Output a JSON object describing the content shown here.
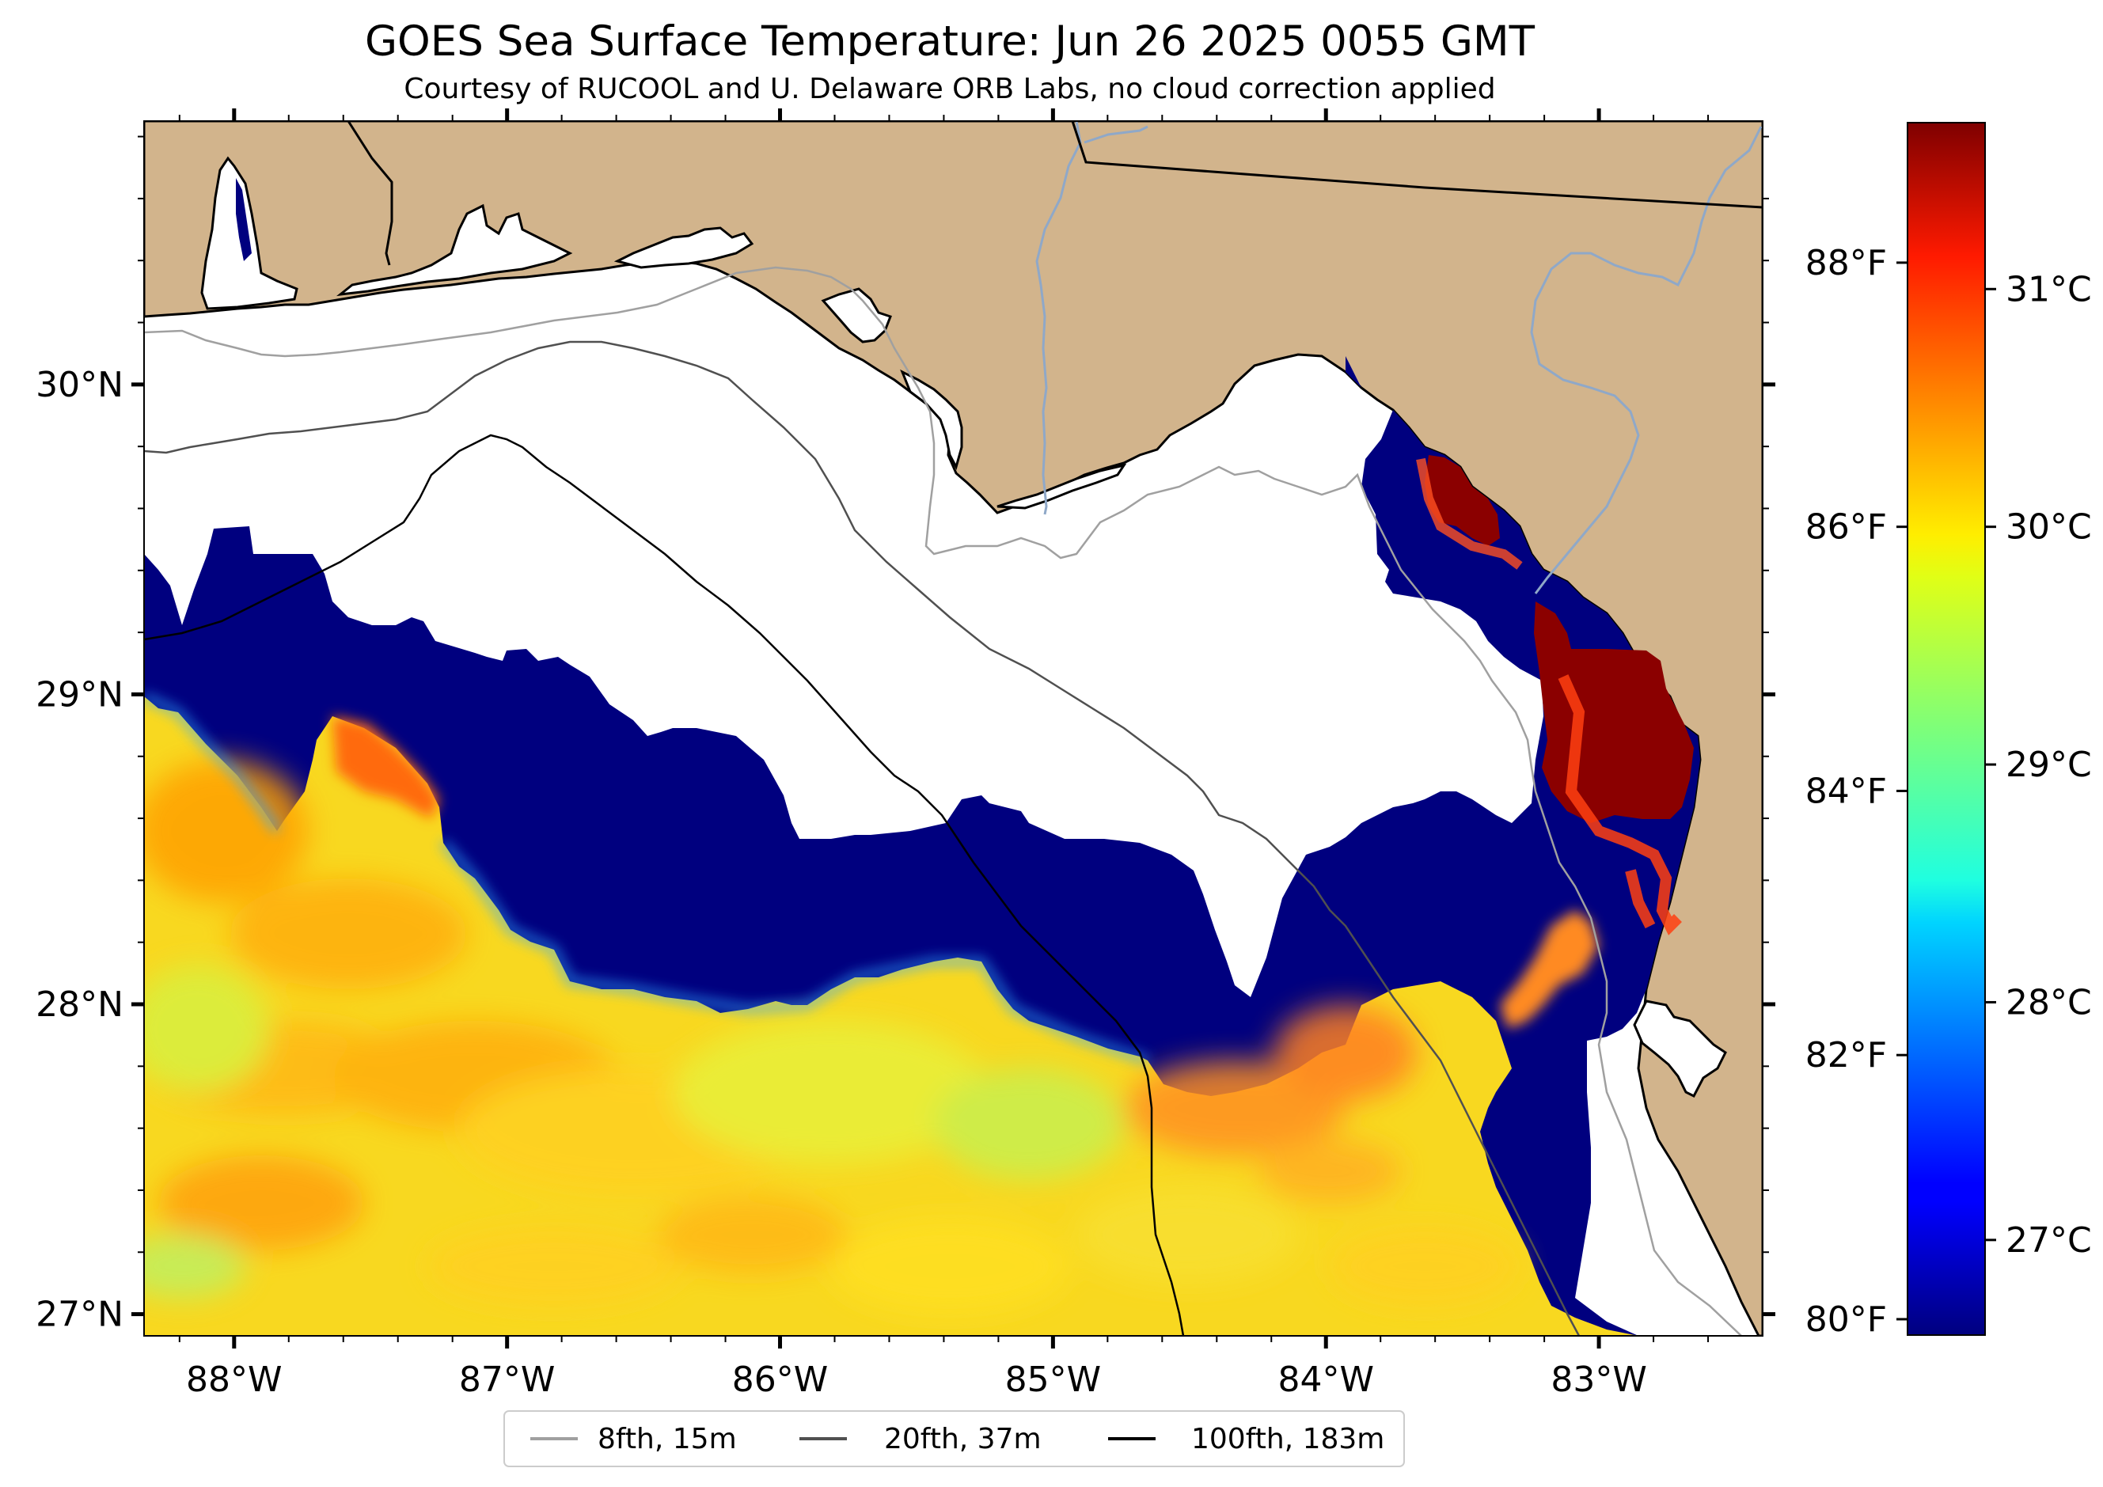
{
  "title": "GOES Sea Surface Temperature: Jun 26 2025 0055 GMT",
  "subtitle": "Courtesy of RUCOOL and U. Delaware ORB Labs, no cloud correction applied",
  "map": {
    "lon_range": [
      -88.33,
      -82.4
    ],
    "lat_range": [
      26.93,
      30.85
    ],
    "lon_ticks": [
      {
        "value": -88,
        "label": "88°W"
      },
      {
        "value": -87,
        "label": "87°W"
      },
      {
        "value": -86,
        "label": "86°W"
      },
      {
        "value": -85,
        "label": "85°W"
      },
      {
        "value": -84,
        "label": "84°W"
      },
      {
        "value": -83,
        "label": "83°W"
      }
    ],
    "lat_ticks": [
      {
        "value": 27,
        "label": "27°N"
      },
      {
        "value": 28,
        "label": "28°N"
      },
      {
        "value": 29,
        "label": "29°N"
      },
      {
        "value": 30,
        "label": "30°N"
      }
    ],
    "colors": {
      "land": "#d2b48c",
      "no_data": "#ffffff",
      "coast": "#000000",
      "river": "#8fa8c8"
    }
  },
  "legend": {
    "entries": [
      {
        "label": "8fth, 15m",
        "color": "#a0a0a0"
      },
      {
        "label": "20fth, 37m",
        "color": "#505050"
      },
      {
        "label": "100fth, 183m",
        "color": "#000000"
      }
    ]
  },
  "colorbar": {
    "colormap": "jet",
    "celsius_range": [
      26.6,
      31.7
    ],
    "celsius_ticks": [
      {
        "value": 27,
        "label": "27°C"
      },
      {
        "value": 28,
        "label": "28°C"
      },
      {
        "value": 29,
        "label": "29°C"
      },
      {
        "value": 30,
        "label": "30°C"
      },
      {
        "value": 31,
        "label": "31°C"
      }
    ],
    "fahrenheit_ticks": [
      {
        "value": 80,
        "label": "80°F"
      },
      {
        "value": 82,
        "label": "82°F"
      },
      {
        "value": 84,
        "label": "84°F"
      },
      {
        "value": 86,
        "label": "86°F"
      },
      {
        "value": 88,
        "label": "88°F"
      }
    ]
  }
}
